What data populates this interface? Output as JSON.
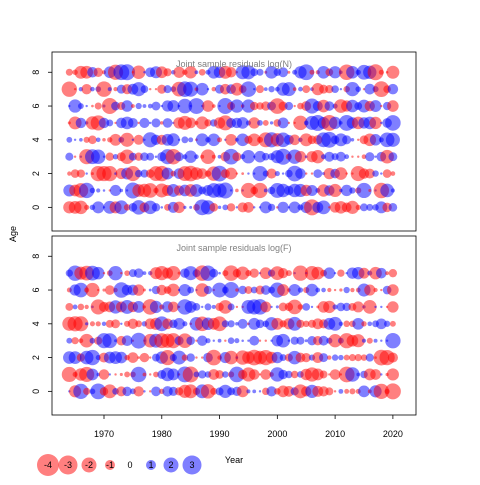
{
  "chart_data": [
    {
      "type": "scatter",
      "subtype": "bubble-residuals",
      "title": "Joint sample residuals log(N)",
      "ylabel": "Age",
      "xlim": [
        1961,
        2024
      ],
      "ylim": [
        -1.4,
        9.2
      ],
      "x_ticks": [
        1970,
        1980,
        1990,
        2000,
        2010,
        2020
      ],
      "y_ticks": [
        0,
        2,
        4,
        6,
        8
      ],
      "x_range": [
        1964,
        2020
      ],
      "ages": [
        0,
        1,
        2,
        3,
        4,
        5,
        6,
        7,
        8
      ],
      "positive_color": "#0000ff",
      "negative_color": "#ff0000",
      "dominant_sign": "positive"
    },
    {
      "type": "scatter",
      "subtype": "bubble-residuals",
      "title": "Joint sample residuals log(F)",
      "ylabel": "Age",
      "xlabel": "Year",
      "xlim": [
        1961,
        2024
      ],
      "ylim": [
        -1.4,
        9.2
      ],
      "x_ticks": [
        1970,
        1980,
        1990,
        2000,
        2010,
        2020
      ],
      "y_ticks": [
        0,
        2,
        4,
        6,
        8
      ],
      "x_range": [
        1964,
        2020
      ],
      "ages": [
        0,
        1,
        2,
        3,
        4,
        5,
        6,
        7
      ],
      "positive_color": "#0000ff",
      "negative_color": "#ff0000",
      "dominant_sign": "negative"
    }
  ],
  "legend": {
    "values": [
      "-4",
      "-3",
      "-2",
      "-1",
      "0",
      "1",
      "2",
      "3"
    ]
  },
  "axis": {
    "ylabel": "Age",
    "xlabel": "Year"
  }
}
